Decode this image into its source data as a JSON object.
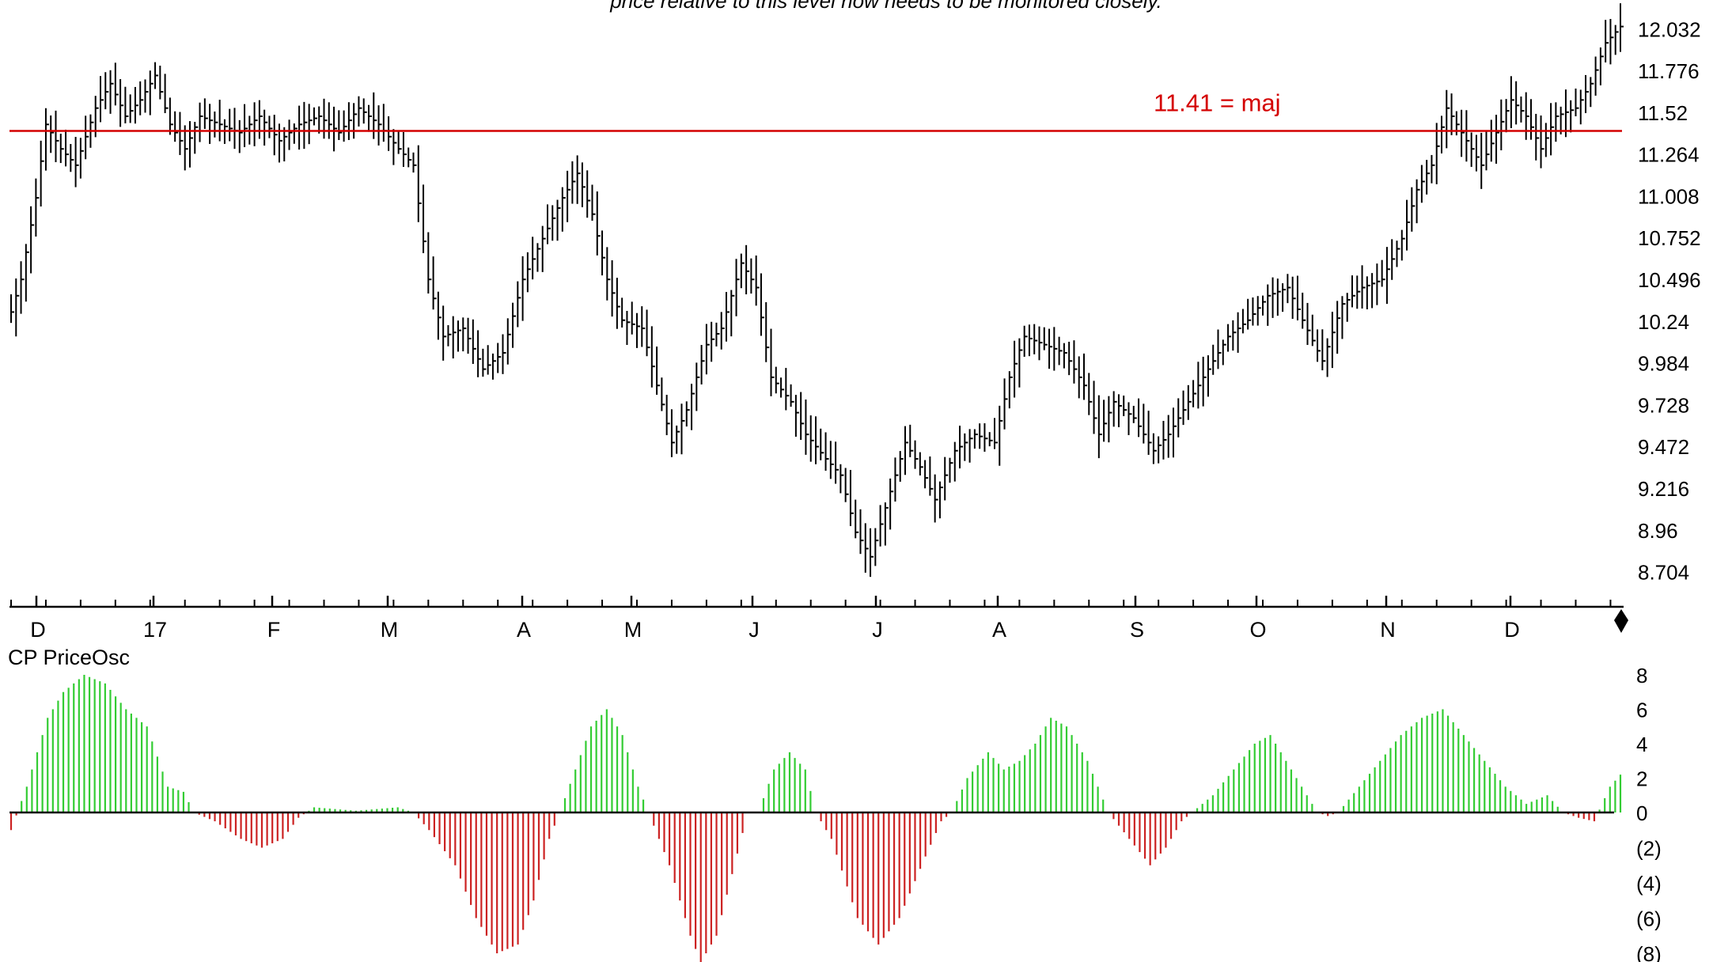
{
  "chart_data": [
    {
      "type": "ohlc",
      "title": "price relative to this level now needs to be monitored closely.",
      "xlabel": "",
      "ylabel": "",
      "ylim": [
        8.6,
        12.14
      ],
      "y_ticks": [
        "12.032",
        "11.776",
        "11.52",
        "11.264",
        "11.008",
        "10.752",
        "10.496",
        "10.24",
        "9.984",
        "9.728",
        "9.472",
        "9.216",
        "8.96",
        "8.704"
      ],
      "x_ticks": [
        "D",
        "17",
        "F",
        "M",
        "A",
        "M",
        "J",
        "J",
        "A",
        "S",
        "O",
        "N",
        "D"
      ],
      "reference_line": {
        "value": 11.41,
        "label": "11.41 = maj",
        "color": "#d40000"
      },
      "bar_color": "#000000",
      "close_anchors": [
        [
          0,
          10.3
        ],
        [
          2,
          10.5
        ],
        [
          5,
          11.0
        ],
        [
          7,
          11.45
        ],
        [
          10,
          11.3
        ],
        [
          13,
          11.2
        ],
        [
          17,
          11.55
        ],
        [
          20,
          11.7
        ],
        [
          23,
          11.5
        ],
        [
          26,
          11.6
        ],
        [
          29,
          11.75
        ],
        [
          32,
          11.45
        ],
        [
          35,
          11.3
        ],
        [
          38,
          11.5
        ],
        [
          42,
          11.45
        ],
        [
          46,
          11.4
        ],
        [
          50,
          11.5
        ],
        [
          54,
          11.35
        ],
        [
          58,
          11.45
        ],
        [
          62,
          11.5
        ],
        [
          66,
          11.4
        ],
        [
          70,
          11.55
        ],
        [
          74,
          11.45
        ],
        [
          78,
          11.3
        ],
        [
          81,
          11.2
        ],
        [
          84,
          10.5
        ],
        [
          87,
          10.15
        ],
        [
          91,
          10.2
        ],
        [
          95,
          9.95
        ],
        [
          99,
          10.05
        ],
        [
          103,
          10.5
        ],
        [
          107,
          10.75
        ],
        [
          111,
          11.0
        ],
        [
          114,
          11.15
        ],
        [
          117,
          10.9
        ],
        [
          120,
          10.5
        ],
        [
          123,
          10.25
        ],
        [
          127,
          10.2
        ],
        [
          130,
          9.85
        ],
        [
          133,
          9.5
        ],
        [
          136,
          9.7
        ],
        [
          140,
          10.1
        ],
        [
          143,
          10.2
        ],
        [
          147,
          10.6
        ],
        [
          150,
          10.45
        ],
        [
          153,
          9.9
        ],
        [
          157,
          9.75
        ],
        [
          160,
          9.55
        ],
        [
          164,
          9.4
        ],
        [
          167,
          9.3
        ],
        [
          170,
          8.95
        ],
        [
          173,
          8.8
        ],
        [
          176,
          9.1
        ],
        [
          180,
          9.5
        ],
        [
          183,
          9.35
        ],
        [
          186,
          9.15
        ],
        [
          190,
          9.45
        ],
        [
          194,
          9.55
        ],
        [
          198,
          9.5
        ],
        [
          201,
          9.9
        ],
        [
          204,
          10.15
        ],
        [
          208,
          10.1
        ],
        [
          212,
          10.05
        ],
        [
          216,
          9.85
        ],
        [
          219,
          9.55
        ],
        [
          222,
          9.75
        ],
        [
          226,
          9.65
        ],
        [
          230,
          9.45
        ],
        [
          233,
          9.55
        ],
        [
          237,
          9.75
        ],
        [
          241,
          9.95
        ],
        [
          245,
          10.15
        ],
        [
          249,
          10.25
        ],
        [
          253,
          10.4
        ],
        [
          257,
          10.45
        ],
        [
          260,
          10.25
        ],
        [
          264,
          10.0
        ],
        [
          268,
          10.35
        ],
        [
          272,
          10.45
        ],
        [
          276,
          10.5
        ],
        [
          280,
          10.75
        ],
        [
          283,
          11.05
        ],
        [
          286,
          11.2
        ],
        [
          289,
          11.55
        ],
        [
          293,
          11.35
        ],
        [
          296,
          11.2
        ],
        [
          299,
          11.4
        ],
        [
          302,
          11.6
        ],
        [
          305,
          11.5
        ],
        [
          308,
          11.3
        ],
        [
          311,
          11.5
        ],
        [
          315,
          11.55
        ],
        [
          318,
          11.7
        ],
        [
          321,
          11.95
        ],
        [
          324,
          12.05
        ]
      ]
    },
    {
      "type": "bar",
      "title": "CP PriceOsc",
      "ylim": [
        -8.5,
        8.5
      ],
      "y_ticks": [
        "8",
        "6",
        "4",
        "2",
        "0",
        "(2)",
        "(4)",
        "(6)",
        "(8)"
      ],
      "positive_color": "#33cc33",
      "negative_color": "#cc2222",
      "anchors": [
        [
          0,
          -1
        ],
        [
          3,
          1.5
        ],
        [
          7,
          5.5
        ],
        [
          10,
          7
        ],
        [
          14,
          8
        ],
        [
          18,
          7.5
        ],
        [
          22,
          6
        ],
        [
          26,
          5
        ],
        [
          30,
          1.5
        ],
        [
          33,
          1.2
        ],
        [
          35,
          0
        ],
        [
          39,
          -0.5
        ],
        [
          44,
          -1.5
        ],
        [
          48,
          -2
        ],
        [
          52,
          -1.5
        ],
        [
          55,
          -0.3
        ],
        [
          58,
          0.3
        ],
        [
          62,
          0.2
        ],
        [
          66,
          0.1
        ],
        [
          70,
          0.2
        ],
        [
          74,
          0.3
        ],
        [
          77,
          0
        ],
        [
          80,
          -1
        ],
        [
          85,
          -3
        ],
        [
          89,
          -6
        ],
        [
          93,
          -8
        ],
        [
          97,
          -7.5
        ],
        [
          100,
          -5
        ],
        [
          103,
          -1.5
        ],
        [
          105,
          0
        ],
        [
          108,
          2.5
        ],
        [
          111,
          5
        ],
        [
          114,
          6
        ],
        [
          117,
          4.5
        ],
        [
          120,
          1.5
        ],
        [
          122,
          0
        ],
        [
          126,
          -3
        ],
        [
          130,
          -7
        ],
        [
          132,
          -8.5
        ],
        [
          135,
          -7
        ],
        [
          138,
          -3.5
        ],
        [
          141,
          0
        ],
        [
          143,
          0
        ],
        [
          146,
          2.5
        ],
        [
          149,
          3.5
        ],
        [
          152,
          2.5
        ],
        [
          154,
          0
        ],
        [
          157,
          -1.5
        ],
        [
          162,
          -6
        ],
        [
          166,
          -7.5
        ],
        [
          170,
          -6
        ],
        [
          175,
          -2.5
        ],
        [
          178,
          -0.5
        ],
        [
          180,
          0
        ],
        [
          183,
          2
        ],
        [
          187,
          3.5
        ],
        [
          190,
          2.5
        ],
        [
          193,
          3
        ],
        [
          196,
          4
        ],
        [
          199,
          5.5
        ],
        [
          202,
          5
        ],
        [
          206,
          3
        ],
        [
          210,
          0
        ],
        [
          214,
          -1.5
        ],
        [
          218,
          -3
        ],
        [
          221,
          -2
        ],
        [
          224,
          -0.5
        ],
        [
          226,
          0
        ],
        [
          230,
          1
        ],
        [
          234,
          2.5
        ],
        [
          238,
          4
        ],
        [
          241,
          4.5
        ],
        [
          245,
          2.5
        ],
        [
          248,
          1
        ],
        [
          250,
          0
        ],
        [
          252,
          -0.2
        ],
        [
          254,
          0
        ],
        [
          258,
          1.5
        ],
        [
          262,
          3
        ],
        [
          266,
          4.5
        ],
        [
          270,
          5.5
        ],
        [
          274,
          6
        ],
        [
          278,
          4.5
        ],
        [
          282,
          3
        ],
        [
          286,
          1.5
        ],
        [
          290,
          0.5
        ],
        [
          294,
          1
        ],
        [
          297,
          0
        ],
        [
          300,
          -0.3
        ],
        [
          303,
          -0.5
        ],
        [
          306,
          1.5
        ],
        [
          308,
          2.2
        ]
      ]
    }
  ]
}
